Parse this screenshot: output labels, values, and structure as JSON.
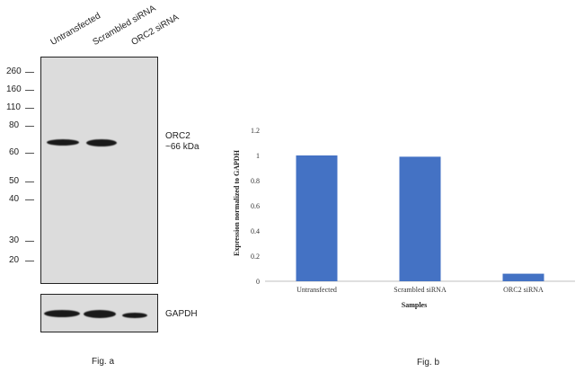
{
  "western_blot": {
    "lanes": [
      "Untransfected",
      "Scrambled siRNA",
      "ORC2 siRNA"
    ],
    "markers": [
      "260",
      "160",
      "110",
      "80",
      "60",
      "50",
      "40",
      "30",
      "20"
    ],
    "target_label_line1": "ORC2",
    "target_label_line2": "~66 kDa",
    "loading_label": "GAPDH",
    "caption": "Fig. a"
  },
  "chart_data": {
    "type": "bar",
    "categories": [
      "Untransfected",
      "Scrambled siRNA",
      "ORC2 siRNA"
    ],
    "values": [
      1.0,
      0.99,
      0.06
    ],
    "title": "",
    "xlabel": "Samples",
    "ylabel": "Expression  normalized to GAPDH",
    "ylim": [
      0,
      1.2
    ],
    "yticks": [
      "0",
      "0.2",
      "0.4",
      "0.6",
      "0.8",
      "1",
      "1.2"
    ],
    "bar_color": "#4472c4",
    "grid": false,
    "caption": "Fig. b"
  }
}
